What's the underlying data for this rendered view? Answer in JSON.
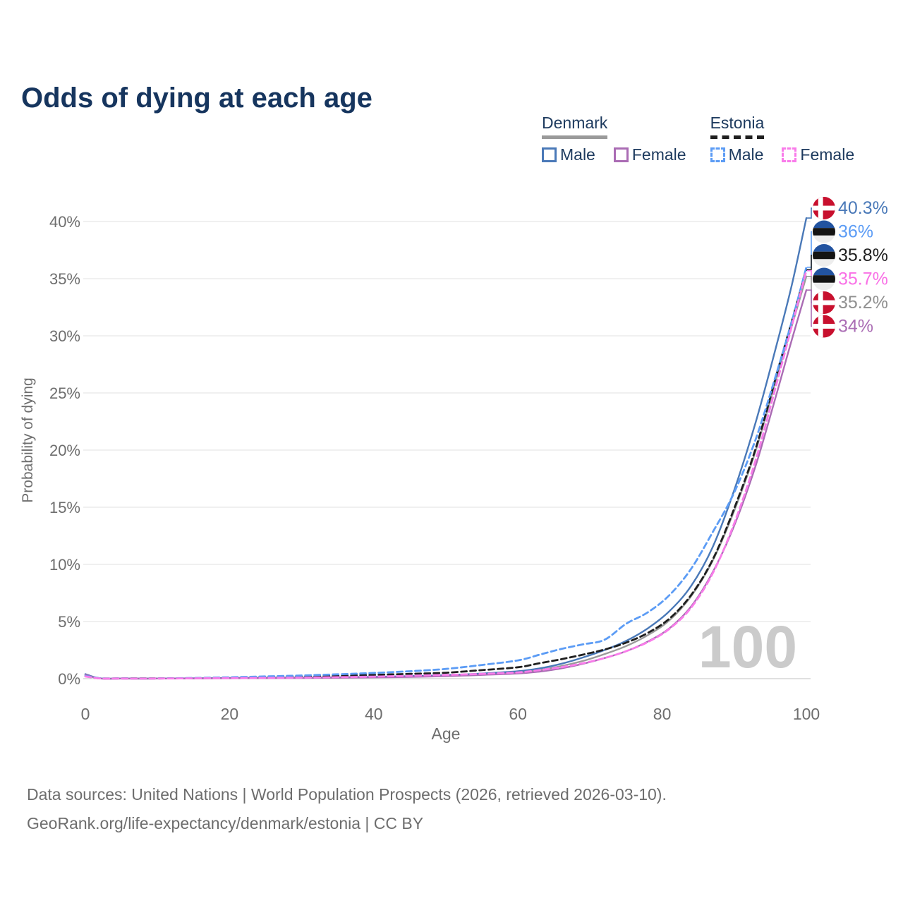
{
  "title": "Odds of dying at each age",
  "legend": {
    "denmark": {
      "label": "Denmark",
      "male_label": "Male",
      "female_label": "Female"
    },
    "estonia": {
      "label": "Estonia",
      "male_label": "Male",
      "female_label": "Female"
    }
  },
  "watermark_age": "100",
  "footer": {
    "line1": "Data sources: United Nations | World Population Prospects (2026, retrieved 2026-03-10).",
    "line2": "GeoRank.org/life-expectancy/denmark/estonia | CC BY"
  },
  "colors": {
    "title_text": "#16355e",
    "legend_text": "#1d3a5e",
    "axis_text": "#6e6e6e",
    "gridline": "#ebebeb",
    "baseline": "#d6d6d6",
    "watermark": "#cbcbcb",
    "denmark_flag_red": "#c8102e",
    "estonia_flag_blue": "#2253a0"
  },
  "chart_data": {
    "type": "line",
    "title": "Odds of dying at each age",
    "xlabel": "Age",
    "ylabel": "Probability of dying",
    "xlim": [
      0,
      100
    ],
    "ylim": [
      0,
      40
    ],
    "x_ticks": [
      0,
      20,
      40,
      60,
      80,
      100
    ],
    "y_ticks": [
      0,
      5,
      10,
      15,
      20,
      25,
      30,
      35,
      40
    ],
    "y_tick_suffix": "%",
    "grid": true,
    "legend_position": "top-right",
    "x": [
      0,
      2,
      5,
      10,
      15,
      20,
      25,
      30,
      35,
      40,
      45,
      50,
      55,
      60,
      63,
      66,
      69,
      72,
      75,
      78,
      81,
      84,
      87,
      90,
      93,
      96,
      98,
      100
    ],
    "draw_order": [
      "denmark-total",
      "denmark-male",
      "denmark-female",
      "estonia-total",
      "estonia-male",
      "estonia-female"
    ],
    "series": [
      {
        "id": "denmark-male",
        "name": "Denmark Male",
        "country": "Denmark",
        "sex": "Male",
        "flag": "denmark",
        "color": "#4a79b8",
        "label_color": "#4a79b8",
        "dash": "",
        "end_label": "40.3%",
        "end_value": 40.3,
        "values": [
          0.4,
          0.03,
          0.01,
          0.01,
          0.03,
          0.06,
          0.08,
          0.09,
          0.11,
          0.16,
          0.22,
          0.3,
          0.45,
          0.65,
          0.9,
          1.3,
          1.85,
          2.5,
          3.3,
          4.4,
          5.9,
          8.1,
          11.5,
          16.5,
          22.5,
          29.5,
          34.5,
          40.3
        ]
      },
      {
        "id": "estonia-male",
        "name": "Estonia Male",
        "country": "Estonia",
        "sex": "Male",
        "flag": "estonia",
        "color": "#5c9cf5",
        "label_color": "#5c9cf5",
        "dash": "8 5",
        "end_label": "36%",
        "end_value": 36.0,
        "values": [
          0.25,
          0.04,
          0.02,
          0.02,
          0.06,
          0.12,
          0.2,
          0.28,
          0.38,
          0.5,
          0.65,
          0.85,
          1.2,
          1.6,
          2.1,
          2.6,
          3.0,
          3.4,
          4.8,
          5.8,
          7.3,
          9.6,
          12.8,
          16.3,
          21.0,
          27.0,
          31.3,
          36.0
        ]
      },
      {
        "id": "estonia-total",
        "name": "Estonia (both sexes)",
        "country": "Estonia",
        "sex": "Both",
        "flag": "estonia",
        "color": "#1f1f1f",
        "label_color": "#1f1f1f",
        "dash": "8 5",
        "end_label": "35.8%",
        "end_value": 35.8,
        "values": [
          0.22,
          0.03,
          0.02,
          0.02,
          0.04,
          0.08,
          0.13,
          0.18,
          0.25,
          0.33,
          0.42,
          0.52,
          0.75,
          1.0,
          1.35,
          1.7,
          2.1,
          2.55,
          3.15,
          4.0,
          5.25,
          7.3,
          10.4,
          14.9,
          20.2,
          26.9,
          31.3,
          35.8
        ]
      },
      {
        "id": "estonia-female",
        "name": "Estonia Female",
        "country": "Estonia",
        "sex": "Female",
        "flag": "estonia",
        "color": "#f97cea",
        "label_color": "#f970e6",
        "dash": "8 5",
        "end_label": "35.7%",
        "end_value": 35.7,
        "values": [
          0.2,
          0.02,
          0.01,
          0.01,
          0.03,
          0.05,
          0.07,
          0.09,
          0.13,
          0.18,
          0.25,
          0.33,
          0.42,
          0.55,
          0.75,
          1.0,
          1.35,
          1.8,
          2.4,
          3.2,
          4.35,
          6.2,
          9.2,
          13.6,
          19.2,
          26.1,
          30.9,
          35.7
        ]
      },
      {
        "id": "denmark-total",
        "name": "Denmark (both sexes)",
        "country": "Denmark",
        "sex": "Both",
        "flag": "denmark",
        "color": "#9a9a9a",
        "label_color": "#8f8f8f",
        "dash": "",
        "end_label": "35.2%",
        "end_value": 35.2,
        "values": [
          0.35,
          0.02,
          0.01,
          0.01,
          0.02,
          0.05,
          0.06,
          0.08,
          0.09,
          0.13,
          0.18,
          0.27,
          0.4,
          0.55,
          0.75,
          1.1,
          1.55,
          2.15,
          2.85,
          3.8,
          5.1,
          7.2,
          10.3,
          14.7,
          20.0,
          26.6,
          30.9,
          35.2
        ]
      },
      {
        "id": "denmark-female",
        "name": "Denmark Female",
        "country": "Denmark",
        "sex": "Female",
        "flag": "denmark",
        "color": "#aa6cb4",
        "label_color": "#aa6cb4",
        "dash": "",
        "end_label": "34%",
        "end_value": 34.0,
        "values": [
          0.35,
          0.02,
          0.01,
          0.01,
          0.02,
          0.04,
          0.05,
          0.06,
          0.08,
          0.11,
          0.15,
          0.22,
          0.33,
          0.45,
          0.62,
          0.9,
          1.3,
          1.8,
          2.4,
          3.25,
          4.4,
          6.3,
          9.3,
          13.4,
          18.7,
          25.2,
          29.7,
          34.0
        ]
      }
    ]
  }
}
